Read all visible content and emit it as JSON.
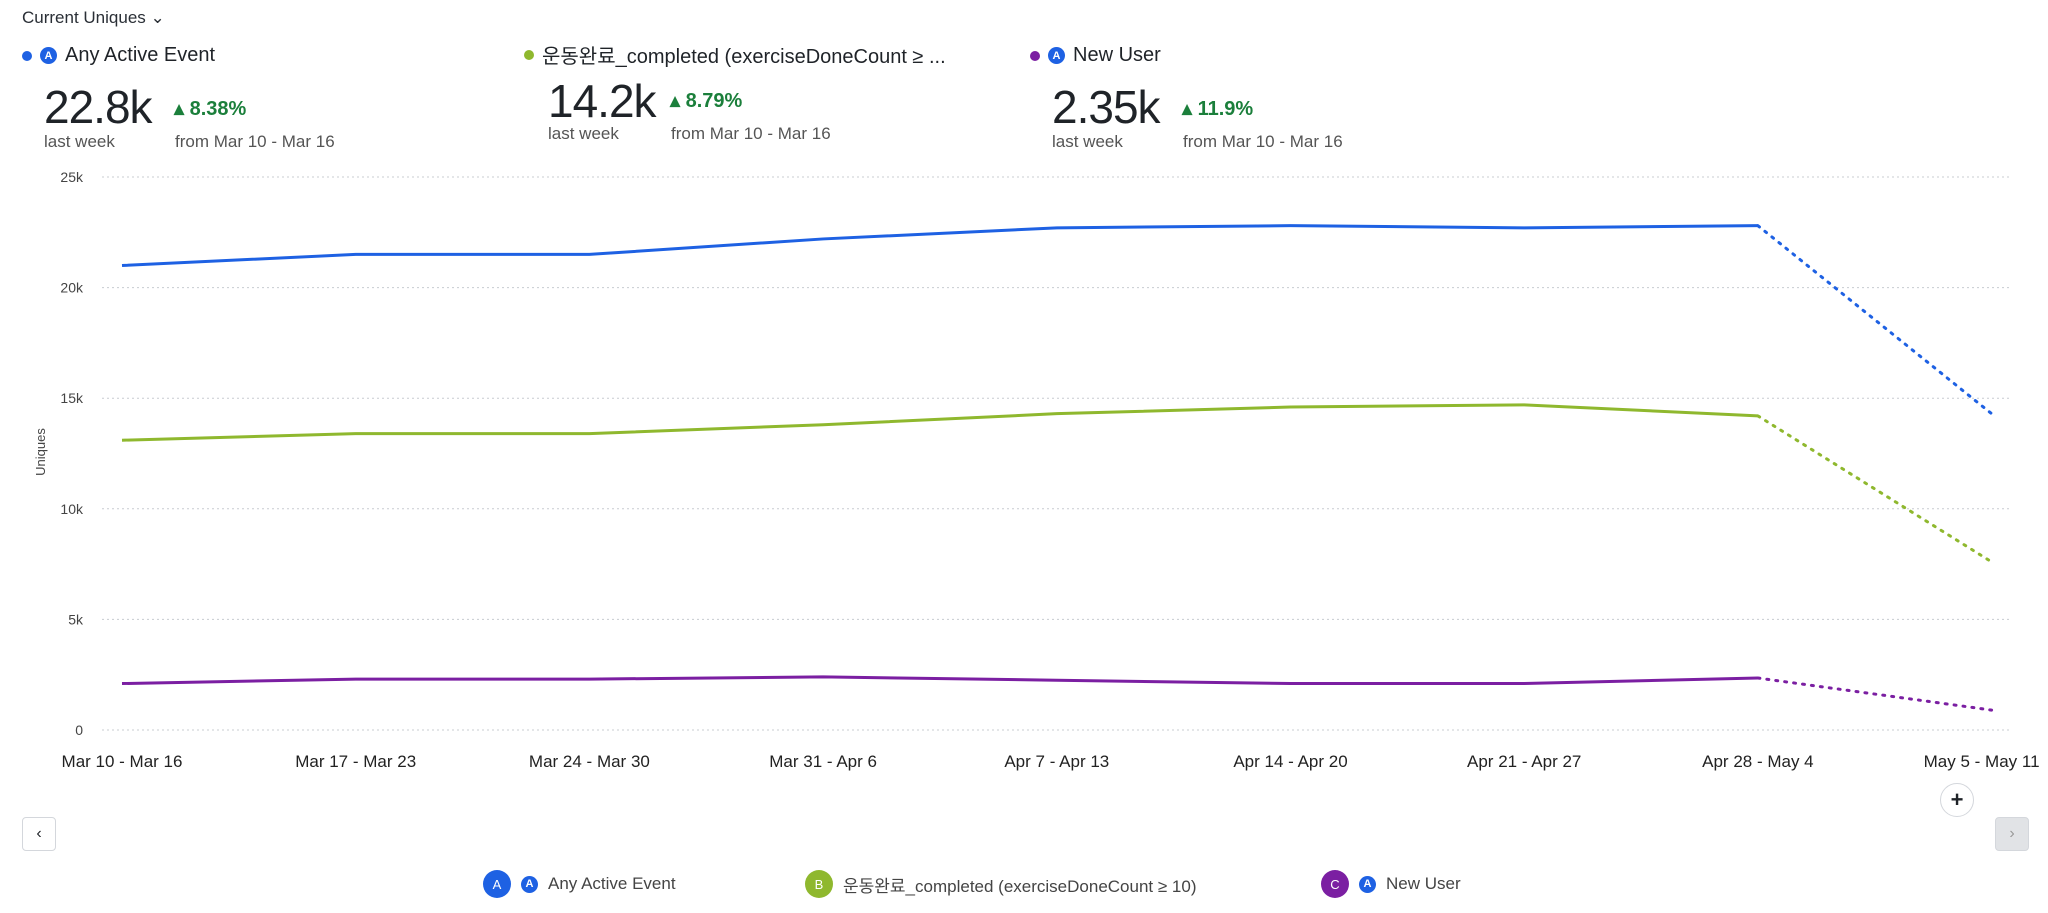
{
  "header": {
    "metric_select": "Current Uniques"
  },
  "cards": [
    {
      "title": "Any Active Event",
      "value": "22.8k",
      "change": "8.38%",
      "period": "last week",
      "from": "from Mar 10 - Mar 16",
      "color": "#1e61e3"
    },
    {
      "title": "운동완료_completed (exerciseDoneCount ≥ ...",
      "value": "14.2k",
      "change": "8.79%",
      "period": "last week",
      "from": "from Mar 10 - Mar 16",
      "color": "#8fb82e"
    },
    {
      "title": "New User",
      "value": "2.35k",
      "change": "11.9%",
      "period": "last week",
      "from": "from Mar 10 - Mar 16",
      "color": "#7b1fa2"
    }
  ],
  "legend": [
    {
      "badge": "A",
      "label": "Any Active Event"
    },
    {
      "badge": "B",
      "label": "운동완료_completed (exerciseDoneCount ≥ 10)"
    },
    {
      "badge": "C",
      "label": "New User"
    }
  ],
  "chart_data": {
    "type": "line",
    "ylabel": "Uniques",
    "ylim": [
      0,
      25000
    ],
    "yticks": [
      "0",
      "5k",
      "10k",
      "15k",
      "20k",
      "25k"
    ],
    "grid": true,
    "categories": [
      "Mar 10 - Mar 16",
      "Mar 17 - Mar 23",
      "Mar 24 - Mar 30",
      "Mar 31 - Apr 6",
      "Apr 7 - Apr 13",
      "Apr 14 - Apr 20",
      "Apr 21 - Apr 27",
      "Apr 28 - May 4",
      "May 5 - May 11"
    ],
    "incomplete_last_period": true,
    "series": [
      {
        "name": "Any Active Event",
        "color": "#1e61e3",
        "values": [
          21000,
          21500,
          21500,
          22200,
          22700,
          22800,
          22700,
          22800,
          14300
        ]
      },
      {
        "name": "운동완료_completed (exerciseDoneCount ≥ 10)",
        "color": "#8fb82e",
        "values": [
          13100,
          13400,
          13400,
          13800,
          14300,
          14600,
          14700,
          14200,
          7600
        ]
      },
      {
        "name": "New User",
        "color": "#7b1fa2",
        "values": [
          2100,
          2300,
          2300,
          2400,
          2250,
          2100,
          2100,
          2350,
          900
        ]
      }
    ]
  }
}
